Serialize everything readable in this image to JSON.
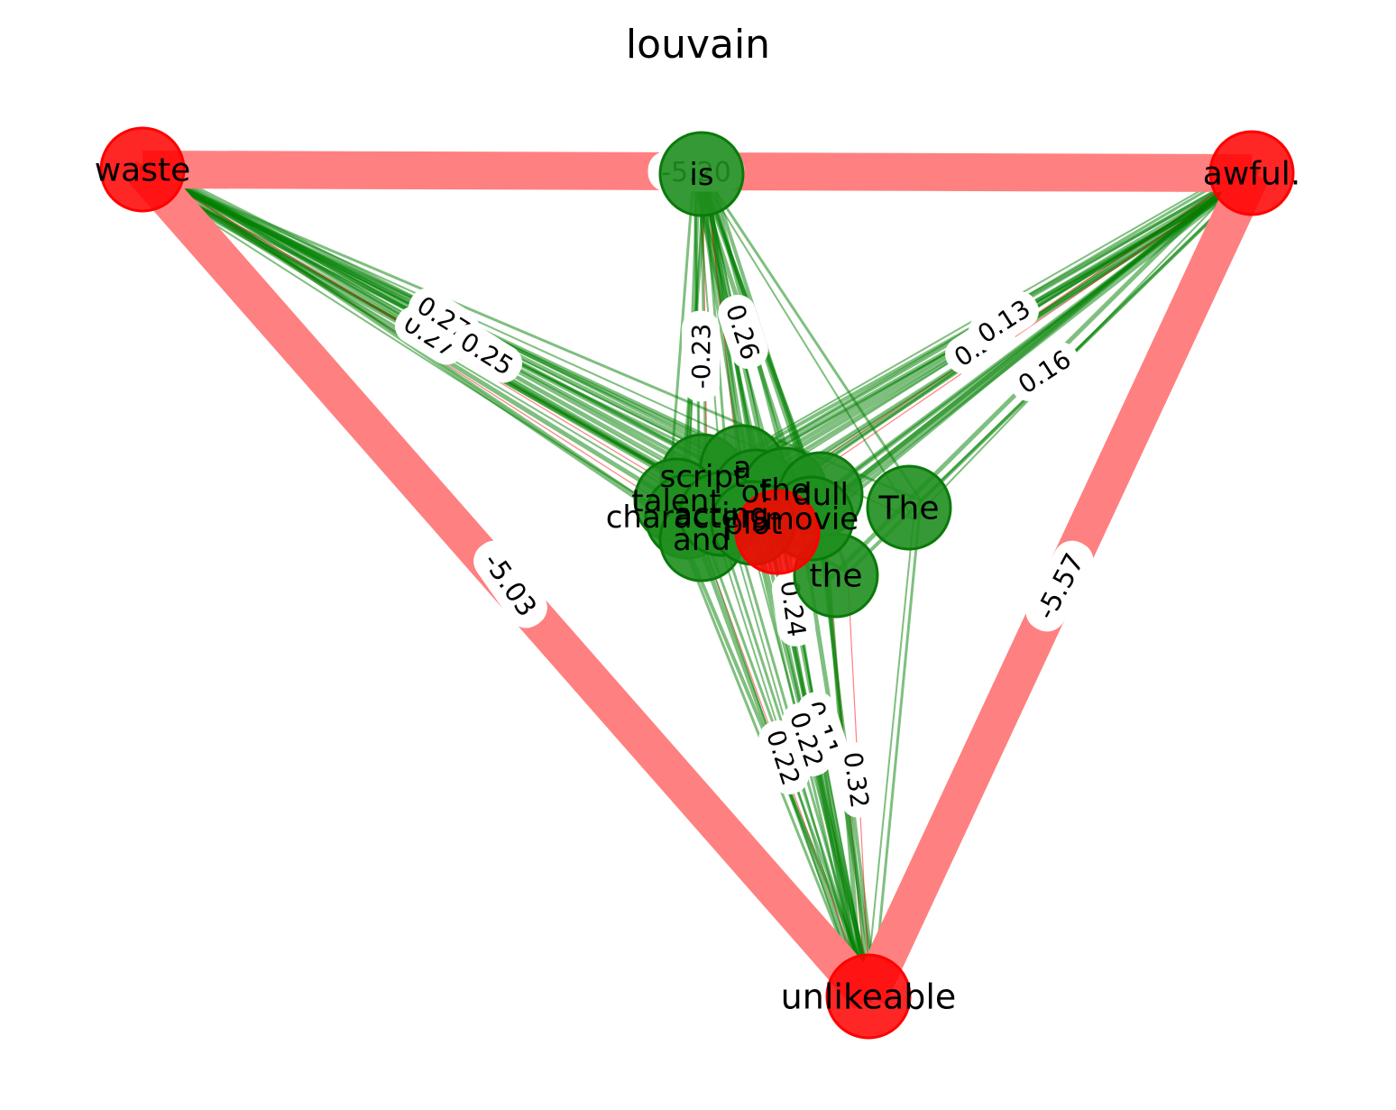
{
  "title": "louvain",
  "colors": {
    "negative_edge": "#ff8080",
    "positive_edge": "#008000",
    "negative_node": "#ff0000",
    "positive_node": "#1f8f1f",
    "label_bg": "#ffffff"
  },
  "nodes": [
    {
      "id": "waste",
      "label": "waste",
      "color": "red"
    },
    {
      "id": "awful",
      "label": "awful.",
      "color": "red"
    },
    {
      "id": "unlikeable",
      "label": "unlikeable",
      "color": "red"
    },
    {
      "id": "is",
      "label": "is",
      "color": "green"
    },
    {
      "id": "The",
      "label": "The",
      "color": "green"
    },
    {
      "id": "the",
      "label": "the",
      "color": "green"
    },
    {
      "id": "script",
      "label": "script",
      "color": "green"
    },
    {
      "id": "a",
      "label": "a",
      "color": "green"
    },
    {
      "id": "talent",
      "label": "talent",
      "color": "green"
    },
    {
      "id": "characters",
      "label": "characters",
      "color": "green"
    },
    {
      "id": "and",
      "label": "and",
      "color": "green"
    },
    {
      "id": "of",
      "label": "of",
      "color": "green"
    },
    {
      "id": "the2",
      "label": "the",
      "color": "green"
    },
    {
      "id": "dull",
      "label": "dull",
      "color": "green"
    },
    {
      "id": "acting",
      "label": "acting",
      "color": "green"
    },
    {
      "id": "movie",
      "label": "movie",
      "color": "green"
    },
    {
      "id": "plot",
      "label": "plot",
      "color": "green"
    },
    {
      "id": "hidden",
      "label": "",
      "color": "red"
    }
  ],
  "heavy_edges": [
    {
      "from": "waste",
      "to": "awful",
      "label": "-5.20"
    },
    {
      "from": "waste",
      "to": "unlikeable",
      "label": "-5.03"
    },
    {
      "from": "awful",
      "to": "unlikeable",
      "label": "-5.57"
    }
  ],
  "edge_labels": [
    "-0.23",
    "0.26",
    "0.27",
    "0.27",
    "0.25",
    "0.20",
    "0.13",
    "0.16",
    "0.22",
    "0.32",
    "0.24",
    "0.11",
    "0.22"
  ]
}
